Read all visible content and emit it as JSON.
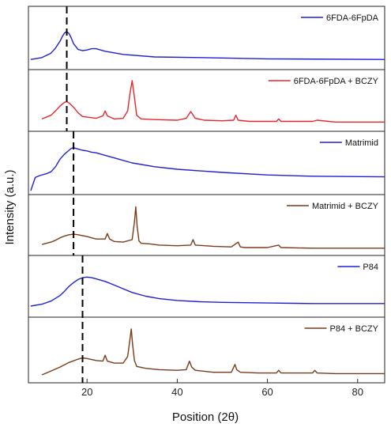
{
  "chart_data": {
    "type": "line",
    "xlabel": "Position (2θ)",
    "ylabel": "Intensity (a.u.)",
    "xlim": [
      7,
      86
    ],
    "x_ticks": [
      20,
      40,
      60,
      80
    ],
    "x_tick_labels": [
      "20",
      "40",
      "60",
      "80"
    ],
    "legend_placement": "top-right of each panel",
    "dashed_reference_lines": [
      {
        "panels": [
          0,
          1
        ],
        "x": 15.5
      },
      {
        "panels": [
          2,
          3
        ],
        "x": 17
      },
      {
        "panels": [
          4,
          5
        ],
        "x": 19
      }
    ],
    "panels": [
      {
        "name": "6FDA-6FpDA",
        "color": "#1f1fd6",
        "ylim": [
          0,
          1
        ],
        "x": [
          7.5,
          10,
          12,
          13,
          14,
          14.5,
          15,
          15.5,
          16,
          16.5,
          17,
          18,
          19,
          20,
          21,
          22,
          24,
          28,
          35,
          45,
          60,
          86
        ],
        "y": [
          0.16,
          0.19,
          0.26,
          0.34,
          0.45,
          0.52,
          0.58,
          0.6,
          0.57,
          0.5,
          0.41,
          0.32,
          0.3,
          0.31,
          0.33,
          0.33,
          0.29,
          0.24,
          0.2,
          0.19,
          0.17,
          0.16
        ]
      },
      {
        "name": "6FDA-6FpDA + BCZY",
        "color": "#e8262a",
        "ylim": [
          0,
          1
        ],
        "x": [
          10,
          12,
          13,
          14,
          15,
          15.5,
          16,
          17,
          18,
          19,
          22,
          23.5,
          24,
          24.5,
          26,
          28,
          29,
          29.5,
          30,
          30.5,
          31,
          32,
          35,
          40,
          42,
          43,
          44,
          46,
          50,
          52.5,
          53,
          53.5,
          56,
          62,
          62.5,
          63,
          70,
          71,
          75,
          86
        ],
        "y": [
          0.2,
          0.26,
          0.33,
          0.41,
          0.47,
          0.48,
          0.46,
          0.39,
          0.3,
          0.24,
          0.21,
          0.25,
          0.33,
          0.25,
          0.2,
          0.21,
          0.33,
          0.6,
          0.82,
          0.55,
          0.26,
          0.2,
          0.19,
          0.18,
          0.21,
          0.32,
          0.21,
          0.18,
          0.17,
          0.18,
          0.26,
          0.18,
          0.16,
          0.16,
          0.2,
          0.16,
          0.16,
          0.18,
          0.15,
          0.15
        ]
      },
      {
        "name": "Matrimid",
        "color": "#1f1fd6",
        "ylim": [
          0,
          1
        ],
        "x": [
          7.5,
          8.5,
          9.5,
          11,
          12,
          13,
          14,
          15,
          16,
          16.5,
          17,
          18,
          19,
          20,
          21,
          22,
          24,
          27,
          30,
          35,
          40,
          50,
          60,
          70,
          86
        ],
        "y": [
          0.06,
          0.27,
          0.3,
          0.33,
          0.36,
          0.44,
          0.56,
          0.64,
          0.7,
          0.73,
          0.74,
          0.72,
          0.7,
          0.69,
          0.67,
          0.66,
          0.62,
          0.56,
          0.5,
          0.44,
          0.4,
          0.35,
          0.31,
          0.29,
          0.28
        ]
      },
      {
        "name": "Matrimid + BCZY",
        "color": "#7a3b1a",
        "ylim": [
          0,
          1
        ],
        "x": [
          10,
          12,
          13,
          14,
          15,
          16,
          17,
          18,
          20,
          22,
          24,
          24.5,
          25,
          26,
          28,
          30,
          30.5,
          30.8,
          31.1,
          31.5,
          32,
          34,
          36,
          40,
          43,
          43.5,
          44,
          48,
          52,
          53.5,
          54,
          55,
          60,
          62.5,
          63,
          70,
          75,
          86
        ],
        "y": [
          0.18,
          0.22,
          0.25,
          0.29,
          0.32,
          0.34,
          0.35,
          0.34,
          0.31,
          0.27,
          0.27,
          0.36,
          0.27,
          0.23,
          0.22,
          0.26,
          0.55,
          0.8,
          0.48,
          0.24,
          0.2,
          0.19,
          0.17,
          0.16,
          0.17,
          0.26,
          0.17,
          0.15,
          0.14,
          0.22,
          0.14,
          0.13,
          0.13,
          0.17,
          0.13,
          0.12,
          0.12,
          0.12
        ]
      },
      {
        "name": "P84",
        "color": "#1f1fd6",
        "ylim": [
          0,
          1
        ],
        "x": [
          7.5,
          10,
          12,
          14,
          15,
          16,
          17,
          18,
          19,
          20,
          21,
          22,
          24,
          26,
          28,
          30,
          33,
          36,
          40,
          45,
          50,
          60,
          70,
          86
        ],
        "y": [
          0.18,
          0.21,
          0.26,
          0.35,
          0.42,
          0.5,
          0.56,
          0.61,
          0.64,
          0.65,
          0.64,
          0.62,
          0.58,
          0.52,
          0.46,
          0.4,
          0.34,
          0.3,
          0.27,
          0.25,
          0.24,
          0.23,
          0.22,
          0.22
        ]
      },
      {
        "name": "P84 + BCZY",
        "color": "#7a3b1a",
        "ylim": [
          0,
          1
        ],
        "x": [
          10,
          12,
          14,
          16,
          18,
          19,
          20,
          22,
          23.5,
          24,
          24.5,
          26,
          28,
          29,
          29.5,
          29.8,
          30.1,
          30.5,
          31,
          33,
          36,
          40,
          42,
          42.7,
          43.2,
          44,
          48,
          52,
          52.8,
          53.2,
          54,
          58,
          62,
          62.5,
          63,
          70,
          70.5,
          71,
          75,
          86
        ],
        "y": [
          0.12,
          0.18,
          0.24,
          0.31,
          0.36,
          0.38,
          0.37,
          0.34,
          0.33,
          0.42,
          0.33,
          0.3,
          0.3,
          0.4,
          0.65,
          0.82,
          0.58,
          0.34,
          0.25,
          0.22,
          0.2,
          0.19,
          0.2,
          0.33,
          0.24,
          0.19,
          0.16,
          0.16,
          0.28,
          0.2,
          0.16,
          0.15,
          0.15,
          0.19,
          0.15,
          0.15,
          0.19,
          0.15,
          0.14,
          0.14
        ]
      }
    ]
  }
}
